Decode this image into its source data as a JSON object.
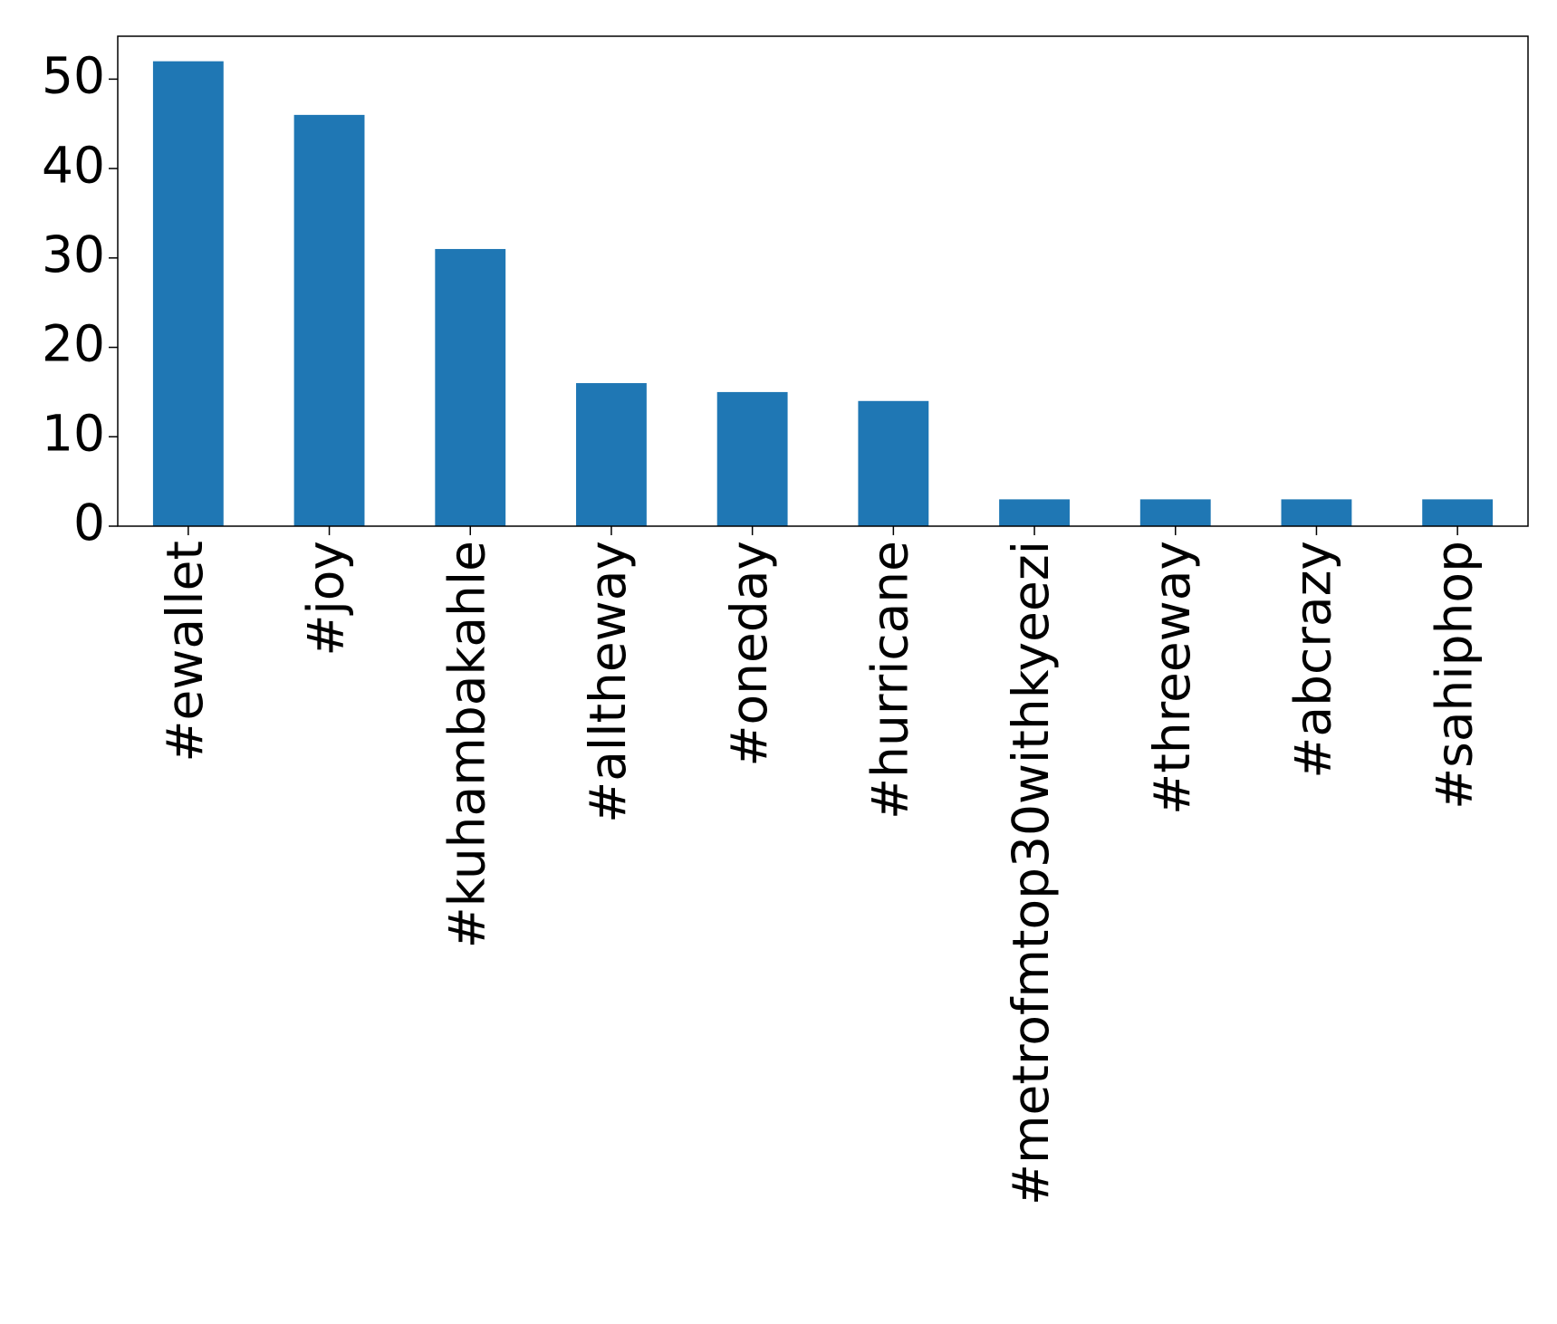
{
  "chart_data": {
    "type": "bar",
    "categories": [
      "#ewallet",
      "#joy",
      "#kuhambakahle",
      "#alltheway",
      "#oneday",
      "#hurricane",
      "#metrofmtop30withkyeezi",
      "#threeway",
      "#abcrazy",
      "#sahiphop"
    ],
    "values": [
      52,
      46,
      31,
      16,
      15,
      14,
      3,
      3,
      3,
      3
    ],
    "color": "#1f77b4",
    "ylim": [
      0,
      54.8
    ],
    "yticks": [
      0,
      10,
      20,
      30,
      40,
      50
    ],
    "grid": false
  }
}
